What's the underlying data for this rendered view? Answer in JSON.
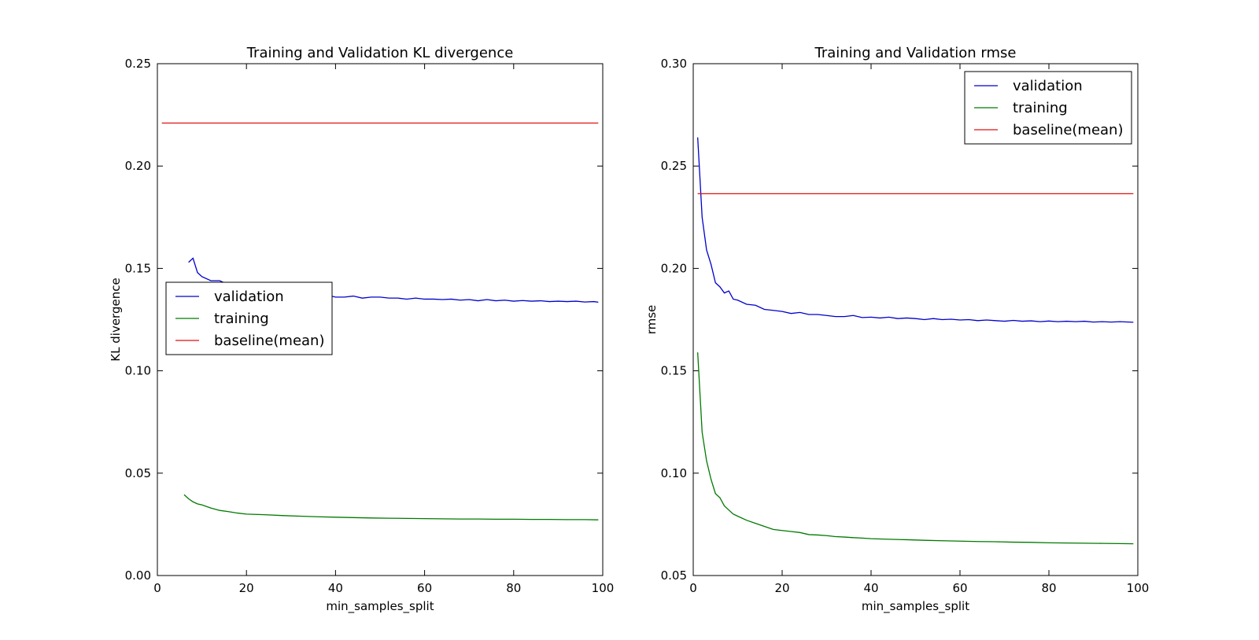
{
  "colors": {
    "validation": "#0000cc",
    "training": "#007a00",
    "baseline": "#e01010"
  },
  "chart_data": [
    {
      "type": "line",
      "title": "Training and Validation KL divergence",
      "xlabel": "min_samples_split",
      "ylabel": "KL divergence",
      "xlim": [
        0,
        100
      ],
      "ylim": [
        0,
        0.25
      ],
      "xticks": [
        "0",
        "20",
        "40",
        "60",
        "80",
        "100"
      ],
      "yticks": [
        "0.00",
        "0.05",
        "0.10",
        "0.15",
        "0.20",
        "0.25"
      ],
      "grid": false,
      "legend_position": "center-left",
      "series": [
        {
          "name": "validation",
          "color_key": "validation",
          "points": [
            [
              7,
              0.153
            ],
            [
              8,
              0.155
            ],
            [
              9,
              0.148
            ],
            [
              10,
              0.146
            ],
            [
              12,
              0.144
            ],
            [
              14,
              0.144
            ],
            [
              16,
              0.142
            ],
            [
              18,
              0.141
            ],
            [
              20,
              0.14
            ],
            [
              22,
              0.139
            ],
            [
              24,
              0.139
            ],
            [
              26,
              0.138
            ],
            [
              28,
              0.138
            ],
            [
              30,
              0.137
            ],
            [
              32,
              0.137
            ],
            [
              34,
              0.136
            ],
            [
              36,
              0.136
            ],
            [
              38,
              0.137
            ],
            [
              40,
              0.136
            ],
            [
              42,
              0.136
            ],
            [
              44,
              0.1365
            ],
            [
              46,
              0.1355
            ],
            [
              48,
              0.136
            ],
            [
              50,
              0.136
            ],
            [
              52,
              0.1355
            ],
            [
              54,
              0.1355
            ],
            [
              56,
              0.135
            ],
            [
              58,
              0.1355
            ],
            [
              60,
              0.135
            ],
            [
              62,
              0.135
            ],
            [
              64,
              0.1348
            ],
            [
              66,
              0.135
            ],
            [
              68,
              0.1345
            ],
            [
              70,
              0.1348
            ],
            [
              72,
              0.1342
            ],
            [
              74,
              0.1348
            ],
            [
              76,
              0.1342
            ],
            [
              78,
              0.1345
            ],
            [
              80,
              0.134
            ],
            [
              82,
              0.1343
            ],
            [
              84,
              0.134
            ],
            [
              86,
              0.1342
            ],
            [
              88,
              0.1338
            ],
            [
              90,
              0.134
            ],
            [
              92,
              0.1338
            ],
            [
              94,
              0.134
            ],
            [
              96,
              0.1336
            ],
            [
              98,
              0.1338
            ],
            [
              99,
              0.1335
            ]
          ]
        },
        {
          "name": "training",
          "color_key": "training",
          "points": [
            [
              6,
              0.0395
            ],
            [
              7,
              0.0375
            ],
            [
              8,
              0.036
            ],
            [
              9,
              0.035
            ],
            [
              10,
              0.0345
            ],
            [
              12,
              0.033
            ],
            [
              14,
              0.0318
            ],
            [
              16,
              0.0312
            ],
            [
              18,
              0.0305
            ],
            [
              20,
              0.03
            ],
            [
              24,
              0.0297
            ],
            [
              28,
              0.0293
            ],
            [
              32,
              0.029
            ],
            [
              36,
              0.0287
            ],
            [
              40,
              0.0285
            ],
            [
              44,
              0.0283
            ],
            [
              48,
              0.0281
            ],
            [
              52,
              0.028
            ],
            [
              56,
              0.0279
            ],
            [
              60,
              0.0278
            ],
            [
              64,
              0.0277
            ],
            [
              68,
              0.0276
            ],
            [
              72,
              0.0276
            ],
            [
              76,
              0.0275
            ],
            [
              80,
              0.0275
            ],
            [
              84,
              0.0274
            ],
            [
              88,
              0.0274
            ],
            [
              92,
              0.0273
            ],
            [
              96,
              0.0273
            ],
            [
              99,
              0.0272
            ]
          ]
        },
        {
          "name": "baseline(mean)",
          "color_key": "baseline",
          "points": [
            [
              1,
              0.221
            ],
            [
              99,
              0.221
            ]
          ]
        }
      ]
    },
    {
      "type": "line",
      "title": "Training and Validation rmse",
      "xlabel": "min_samples_split",
      "ylabel": "rmse",
      "xlim": [
        0,
        100
      ],
      "ylim": [
        0.05,
        0.3
      ],
      "xticks": [
        "0",
        "20",
        "40",
        "60",
        "80",
        "100"
      ],
      "yticks": [
        "0.05",
        "0.10",
        "0.15",
        "0.20",
        "0.25",
        "0.30"
      ],
      "grid": false,
      "legend_position": "top-right",
      "series": [
        {
          "name": "validation",
          "color_key": "validation",
          "points": [
            [
              1,
              0.264
            ],
            [
              2,
              0.225
            ],
            [
              3,
              0.209
            ],
            [
              4,
              0.202
            ],
            [
              5,
              0.193
            ],
            [
              6,
              0.191
            ],
            [
              7,
              0.188
            ],
            [
              8,
              0.189
            ],
            [
              9,
              0.185
            ],
            [
              10,
              0.1845
            ],
            [
              12,
              0.1825
            ],
            [
              14,
              0.182
            ],
            [
              16,
              0.18
            ],
            [
              18,
              0.1795
            ],
            [
              20,
              0.179
            ],
            [
              22,
              0.178
            ],
            [
              24,
              0.1785
            ],
            [
              26,
              0.1775
            ],
            [
              28,
              0.1775
            ],
            [
              30,
              0.177
            ],
            [
              32,
              0.1765
            ],
            [
              34,
              0.1765
            ],
            [
              36,
              0.177
            ],
            [
              38,
              0.176
            ],
            [
              40,
              0.1762
            ],
            [
              42,
              0.1758
            ],
            [
              44,
              0.1762
            ],
            [
              46,
              0.1755
            ],
            [
              48,
              0.1758
            ],
            [
              50,
              0.1755
            ],
            [
              52,
              0.175
            ],
            [
              54,
              0.1755
            ],
            [
              56,
              0.175
            ],
            [
              58,
              0.1752
            ],
            [
              60,
              0.1748
            ],
            [
              62,
              0.175
            ],
            [
              64,
              0.1745
            ],
            [
              66,
              0.1748
            ],
            [
              68,
              0.1745
            ],
            [
              70,
              0.1742
            ],
            [
              72,
              0.1746
            ],
            [
              74,
              0.1742
            ],
            [
              76,
              0.1744
            ],
            [
              78,
              0.174
            ],
            [
              80,
              0.1743
            ],
            [
              82,
              0.174
            ],
            [
              84,
              0.1742
            ],
            [
              86,
              0.174
            ],
            [
              88,
              0.1742
            ],
            [
              90,
              0.1738
            ],
            [
              92,
              0.174
            ],
            [
              94,
              0.1738
            ],
            [
              96,
              0.174
            ],
            [
              98,
              0.1738
            ],
            [
              99,
              0.1737
            ]
          ]
        },
        {
          "name": "training",
          "color_key": "training",
          "points": [
            [
              1,
              0.159
            ],
            [
              2,
              0.12
            ],
            [
              3,
              0.106
            ],
            [
              4,
              0.097
            ],
            [
              5,
              0.09
            ],
            [
              6,
              0.088
            ],
            [
              7,
              0.084
            ],
            [
              8,
              0.082
            ],
            [
              9,
              0.08
            ],
            [
              10,
              0.079
            ],
            [
              12,
              0.077
            ],
            [
              14,
              0.0755
            ],
            [
              16,
              0.074
            ],
            [
              18,
              0.0725
            ],
            [
              20,
              0.072
            ],
            [
              22,
              0.0715
            ],
            [
              24,
              0.071
            ],
            [
              26,
              0.07
            ],
            [
              28,
              0.0698
            ],
            [
              30,
              0.0695
            ],
            [
              32,
              0.069
            ],
            [
              34,
              0.0688
            ],
            [
              36,
              0.0685
            ],
            [
              38,
              0.0683
            ],
            [
              40,
              0.068
            ],
            [
              44,
              0.0677
            ],
            [
              48,
              0.0675
            ],
            [
              52,
              0.0672
            ],
            [
              56,
              0.067
            ],
            [
              60,
              0.0668
            ],
            [
              64,
              0.0666
            ],
            [
              68,
              0.0665
            ],
            [
              72,
              0.0663
            ],
            [
              76,
              0.0662
            ],
            [
              80,
              0.066
            ],
            [
              84,
              0.0659
            ],
            [
              88,
              0.0658
            ],
            [
              92,
              0.0657
            ],
            [
              96,
              0.0656
            ],
            [
              99,
              0.0655
            ]
          ]
        },
        {
          "name": "baseline(mean)",
          "color_key": "baseline",
          "points": [
            [
              1,
              0.2365
            ],
            [
              99,
              0.2365
            ]
          ]
        }
      ]
    }
  ]
}
